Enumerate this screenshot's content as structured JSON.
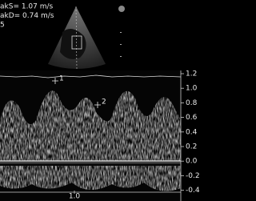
{
  "measurements": [
    "akS= 1.07 m/s",
    "akD= 0.74 m/s",
    "5"
  ],
  "scale": {
    "labels": [
      "1.2",
      "1.0",
      "0.8",
      "0.6",
      "0.4",
      "0.2",
      "0.0",
      "-0.2",
      "-0.4"
    ]
  },
  "markers": [
    "1",
    "2"
  ],
  "time_label": "1.0"
}
